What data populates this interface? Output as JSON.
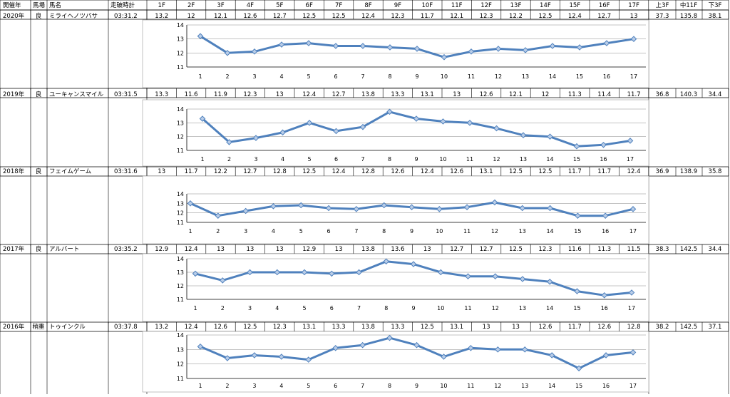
{
  "header": {
    "year": "開催年",
    "track": "馬場",
    "horse": "馬名",
    "time": "走破時計",
    "splits": [
      "1F",
      "2F",
      "3F",
      "4F",
      "5F",
      "6F",
      "7F",
      "8F",
      "9F",
      "10F",
      "11F",
      "12F",
      "13F",
      "14F",
      "15F",
      "16F",
      "17F"
    ],
    "first3f": "上3F",
    "mid11f": "中11F",
    "last3f": "下3F"
  },
  "chart_data": [
    {
      "type": "line",
      "year": "2020年",
      "track": "良",
      "horse": "ミライヘノツバサ",
      "time": "03:31.2",
      "x": [
        1,
        2,
        3,
        4,
        5,
        6,
        7,
        8,
        9,
        10,
        11,
        12,
        13,
        14,
        15,
        16,
        17
      ],
      "values": [
        13.2,
        12,
        12.1,
        12.6,
        12.7,
        12.5,
        12.5,
        12.4,
        12.3,
        11.7,
        12.1,
        12.3,
        12.2,
        12.5,
        12.4,
        12.7,
        13
      ],
      "first3f": "37.3",
      "mid11f": "135.8",
      "last3f": "38.1",
      "ylim": [
        11,
        14
      ],
      "yticks": [
        11,
        12,
        13,
        14
      ],
      "grid": true
    },
    {
      "type": "line",
      "year": "2019年",
      "track": "良",
      "horse": "ユーキャンスマイル",
      "time": "03:31.5",
      "x": [
        1,
        2,
        3,
        4,
        5,
        6,
        7,
        8,
        9,
        10,
        11,
        12,
        13,
        14,
        15,
        16,
        17
      ],
      "values": [
        13.3,
        11.6,
        11.9,
        12.3,
        13,
        12.4,
        12.7,
        13.8,
        13.3,
        13.1,
        13,
        12.6,
        12.1,
        12,
        11.3,
        11.4,
        11.7
      ],
      "first3f": "36.8",
      "mid11f": "140.3",
      "last3f": "34.4",
      "ylim": [
        11,
        14
      ],
      "yticks": [
        11,
        12,
        13,
        14
      ],
      "grid": true
    },
    {
      "type": "line",
      "year": "2018年",
      "track": "良",
      "horse": "フェイムゲーム",
      "time": "03:31.6",
      "x": [
        1,
        2,
        3,
        4,
        5,
        6,
        7,
        8,
        9,
        10,
        11,
        12,
        13,
        14,
        15,
        16,
        17
      ],
      "values": [
        13,
        11.7,
        12.2,
        12.7,
        12.8,
        12.5,
        12.4,
        12.8,
        12.6,
        12.4,
        12.6,
        13.1,
        12.5,
        12.5,
        11.7,
        11.7,
        12.4
      ],
      "first3f": "36.9",
      "mid11f": "138.9",
      "last3f": "35.8",
      "ylim": [
        11,
        14
      ],
      "yticks": [
        11,
        12,
        13,
        14
      ],
      "grid": true
    },
    {
      "type": "line",
      "year": "2017年",
      "track": "良",
      "horse": "アルバート",
      "time": "03:35.2",
      "x": [
        1,
        2,
        3,
        4,
        5,
        6,
        7,
        8,
        9,
        10,
        11,
        12,
        13,
        14,
        15,
        16,
        17
      ],
      "values": [
        12.9,
        12.4,
        13,
        13,
        13,
        12.9,
        13,
        13.8,
        13.6,
        13,
        12.7,
        12.7,
        12.5,
        12.3,
        11.6,
        11.3,
        11.5
      ],
      "first3f": "38.3",
      "mid11f": "142.5",
      "last3f": "34.4",
      "ylim": [
        11,
        14
      ],
      "yticks": [
        11,
        12,
        13,
        14
      ],
      "grid": true
    },
    {
      "type": "line",
      "year": "2016年",
      "track": "稍重",
      "horse": "トゥインクル",
      "time": "03:37.8",
      "x": [
        1,
        2,
        3,
        4,
        5,
        6,
        7,
        8,
        9,
        10,
        11,
        12,
        13,
        14,
        15,
        16,
        17
      ],
      "values": [
        13.2,
        12.4,
        12.6,
        12.5,
        12.3,
        13.1,
        13.3,
        13.8,
        13.3,
        12.5,
        13.1,
        13,
        13,
        12.6,
        11.7,
        12.6,
        12.8
      ],
      "first3f": "38.2",
      "mid11f": "142.5",
      "last3f": "37.1",
      "ylim": [
        11,
        14
      ],
      "yticks": [
        11,
        12,
        13,
        14
      ],
      "grid": true
    }
  ],
  "colors": {
    "line": "#4f81bd",
    "marker_fill": "#b9cde8",
    "grid": "#888888",
    "border": "#000000"
  }
}
